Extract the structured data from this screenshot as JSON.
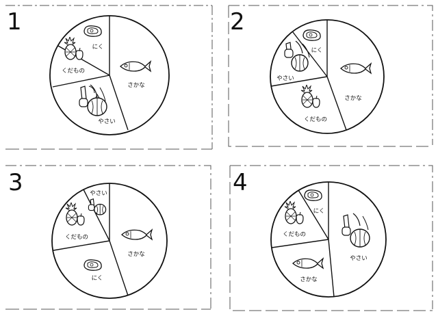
{
  "panels": [
    {
      "number": "1",
      "labels": {
        "niku": "にく",
        "sakana": "さかな",
        "yasai": "やさい",
        "kudamono": "くだもの"
      }
    },
    {
      "number": "2",
      "labels": {
        "niku": "にく",
        "sakana": "さかな",
        "yasai": "やさい",
        "kudamono": "くだもの"
      }
    },
    {
      "number": "3",
      "labels": {
        "niku": "にく",
        "sakana": "さかな",
        "yasai": "やさい",
        "kudamono": "くだもの"
      }
    },
    {
      "number": "4",
      "labels": {
        "niku": "にく",
        "sakana": "さかな",
        "yasai": "やさい",
        "kudamono": "くだもの"
      }
    }
  ],
  "icons": {
    "niku": "meat-steak-icon",
    "sakana": "fish-icon",
    "yasai": "vegetables-icon",
    "kudamono": "fruit-pineapple-apple-icon"
  },
  "colors": {
    "ink": "#111111",
    "paper": "#ffffff",
    "frame": "#444444"
  }
}
